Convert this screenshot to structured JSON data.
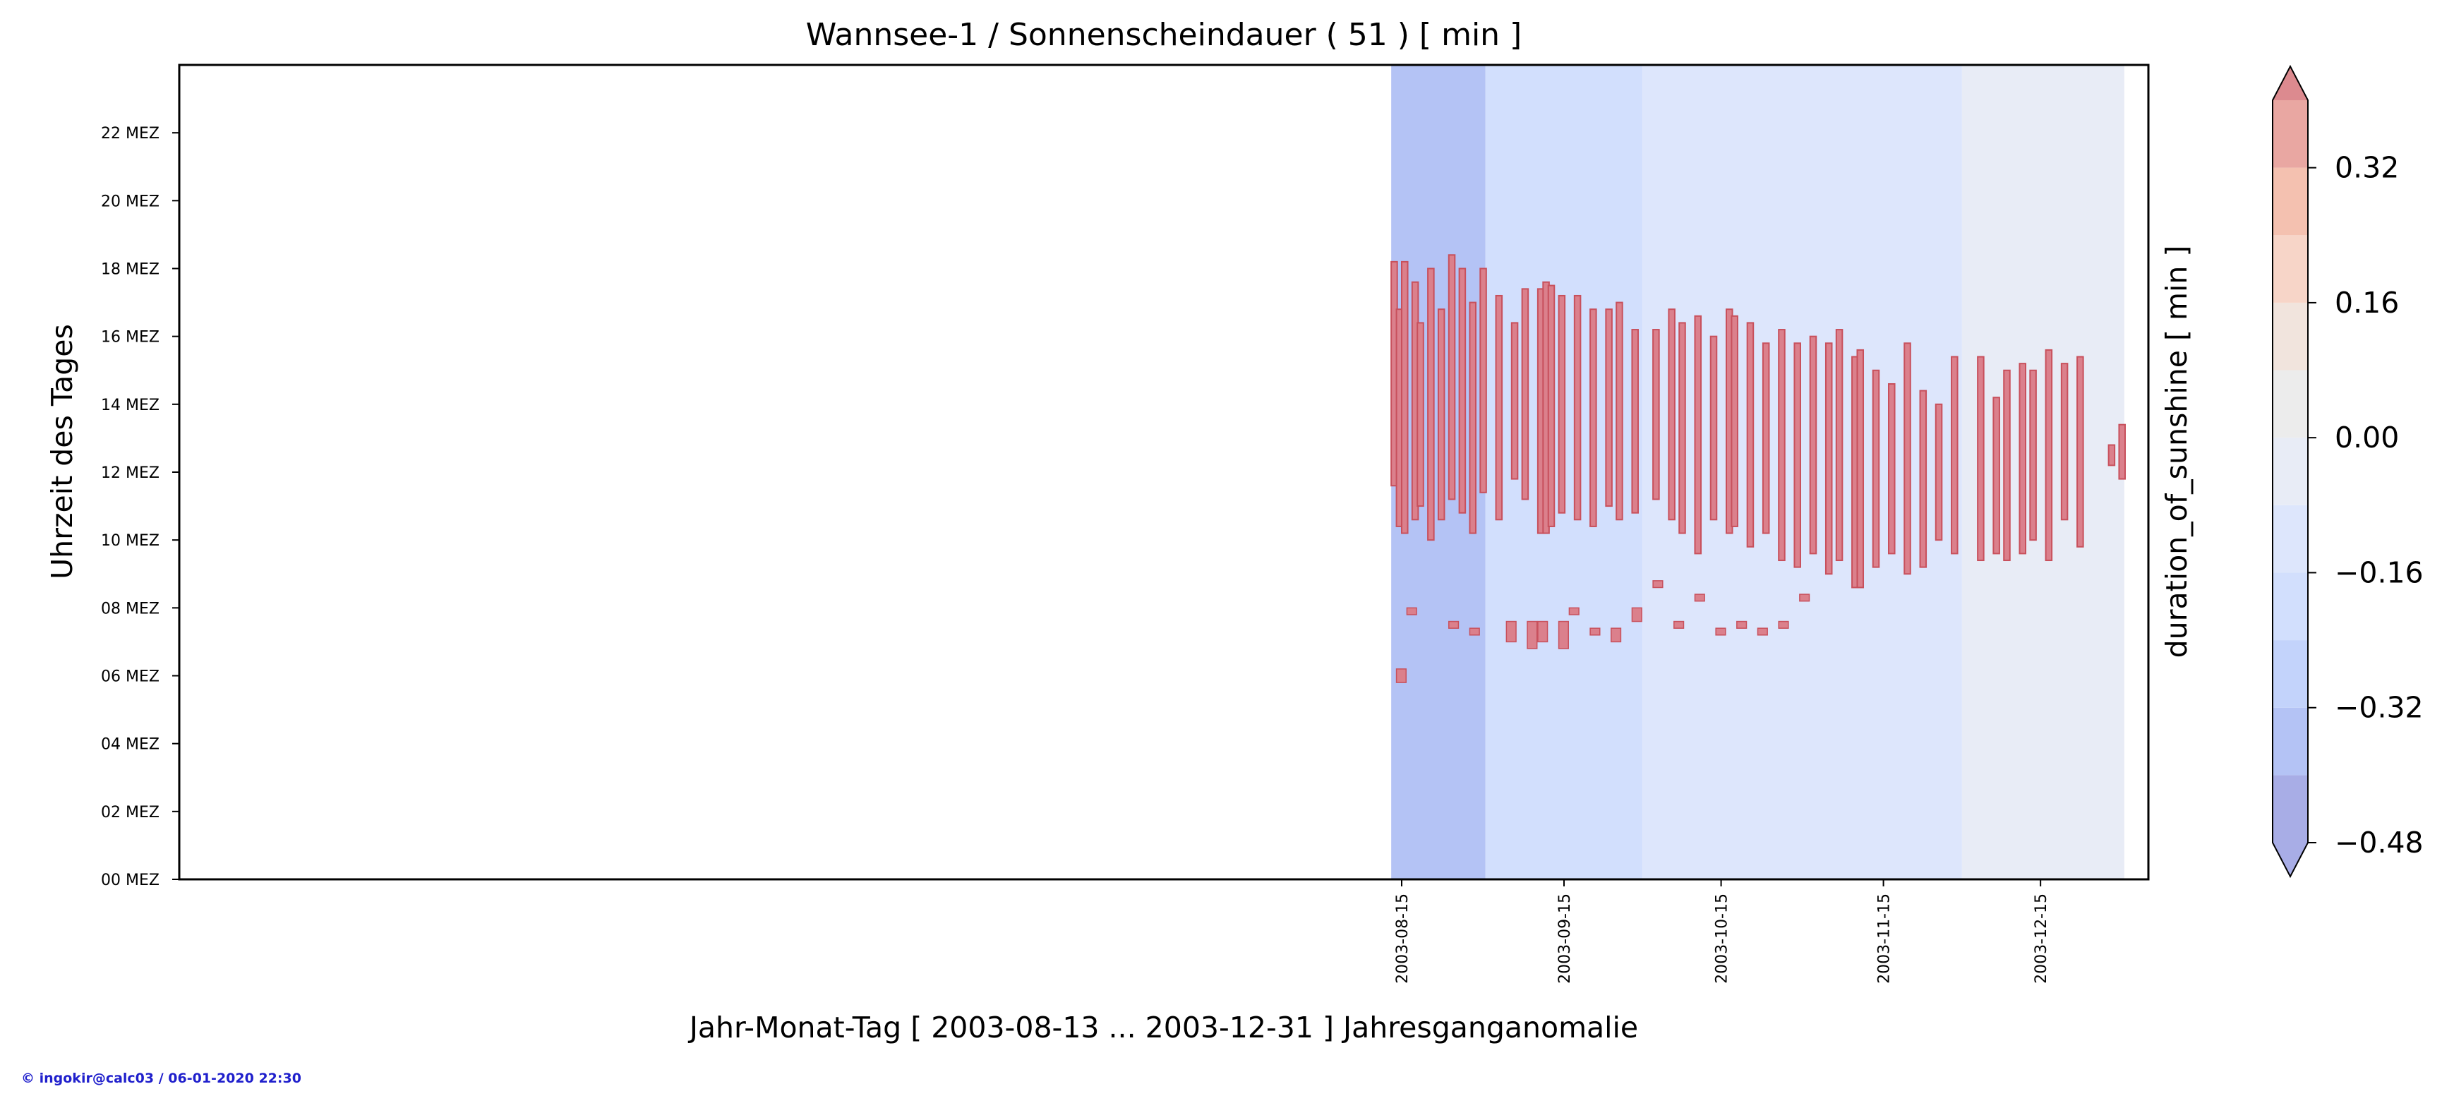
{
  "chart_data": {
    "type": "heatmap",
    "title": "Wannsee-1 / Sonnenscheindauer ( 51 ) [ min ]",
    "xlabel": "Jahr-Monat-Tag [ 2003-08-13 ... 2003-12-31 ] Jahresganganomalie",
    "ylabel": "Uhrzeit des Tages",
    "x_range": [
      "2003-08-13",
      "2003-12-31"
    ],
    "x_ticks": [
      "2003-08-15",
      "2003-09-15",
      "2003-10-15",
      "2003-11-15",
      "2003-12-15"
    ],
    "y_range": [
      0,
      24
    ],
    "y_ticks": [
      "00 MEZ",
      "02 MEZ",
      "04 MEZ",
      "06 MEZ",
      "08 MEZ",
      "10 MEZ",
      "12 MEZ",
      "14 MEZ",
      "16 MEZ",
      "18 MEZ",
      "20 MEZ",
      "22 MEZ"
    ],
    "colorbar": {
      "label": "duration_of_sunshine [ min ]",
      "range": [
        -0.48,
        0.4
      ],
      "levels": [
        -0.48,
        -0.4,
        -0.32,
        -0.24,
        -0.16,
        -0.08,
        0.0,
        0.08,
        0.16,
        0.24,
        0.32,
        0.4
      ],
      "tick_labels": [
        "0.32",
        "0.16",
        "0.00",
        "−0.16",
        "−0.32",
        "−0.48"
      ],
      "tick_values": [
        0.32,
        0.16,
        0.0,
        -0.16,
        -0.32,
        -0.48
      ],
      "extend": "both",
      "colors": [
        "#a8ade6",
        "#b4c3f5",
        "#c3d3fb",
        "#d2dffd",
        "#dde6fc",
        "#e8ecf6",
        "#ececec",
        "#f1e4dd",
        "#f7d5c8",
        "#f4c1b0",
        "#e9a7a2",
        "#dc8a8f"
      ],
      "under_color": "#c7d4f7",
      "over_color": "#db808c"
    },
    "background_bands": [
      {
        "start": "2003-08-13",
        "end": "2003-08-31",
        "value": -0.33
      },
      {
        "start": "2003-08-31",
        "end": "2003-09-30",
        "value": -0.22
      },
      {
        "start": "2003-09-30",
        "end": "2003-11-30",
        "value": -0.12
      },
      {
        "start": "2003-11-30",
        "end": "2003-12-31",
        "value": -0.04
      }
    ],
    "positive_segments": [
      [
        "2003-08-13",
        11.6,
        18.2
      ],
      [
        "2003-08-14",
        10.4,
        16.8
      ],
      [
        "2003-08-15",
        10.2,
        18.2
      ],
      [
        "2003-08-17",
        10.6,
        17.6
      ],
      [
        "2003-08-18",
        11.0,
        16.4
      ],
      [
        "2003-08-20",
        10.0,
        18.0
      ],
      [
        "2003-08-22",
        10.6,
        16.8
      ],
      [
        "2003-08-24",
        11.2,
        18.4
      ],
      [
        "2003-08-26",
        10.8,
        18.0
      ],
      [
        "2003-08-28",
        10.2,
        17.0
      ],
      [
        "2003-08-30",
        11.4,
        18.0
      ],
      [
        "2003-09-02",
        10.6,
        17.2
      ],
      [
        "2003-09-05",
        11.8,
        16.4
      ],
      [
        "2003-09-07",
        11.2,
        17.4
      ],
      [
        "2003-09-10",
        10.2,
        17.4
      ],
      [
        "2003-09-11",
        10.2,
        17.6
      ],
      [
        "2003-09-12",
        10.4,
        17.5
      ],
      [
        "2003-09-14",
        10.8,
        17.2
      ],
      [
        "2003-09-17",
        10.6,
        17.2
      ],
      [
        "2003-09-20",
        10.4,
        16.8
      ],
      [
        "2003-09-23",
        11.0,
        16.8
      ],
      [
        "2003-09-25",
        10.6,
        17.0
      ],
      [
        "2003-09-28",
        10.8,
        16.2
      ],
      [
        "2003-10-02",
        11.2,
        16.2
      ],
      [
        "2003-10-05",
        10.6,
        16.8
      ],
      [
        "2003-10-07",
        10.2,
        16.4
      ],
      [
        "2003-10-10",
        9.6,
        16.6
      ],
      [
        "2003-10-13",
        10.6,
        16.0
      ],
      [
        "2003-10-16",
        10.2,
        16.8
      ],
      [
        "2003-10-17",
        10.4,
        16.6
      ],
      [
        "2003-10-20",
        9.8,
        16.4
      ],
      [
        "2003-10-23",
        10.2,
        15.8
      ],
      [
        "2003-10-26",
        9.4,
        16.2
      ],
      [
        "2003-10-29",
        9.2,
        15.8
      ],
      [
        "2003-11-01",
        9.6,
        16.0
      ],
      [
        "2003-11-04",
        9.0,
        15.8
      ],
      [
        "2003-11-06",
        9.4,
        16.2
      ],
      [
        "2003-11-09",
        8.6,
        15.4
      ],
      [
        "2003-11-10",
        8.6,
        15.6
      ],
      [
        "2003-11-13",
        9.2,
        15.0
      ],
      [
        "2003-11-16",
        9.6,
        14.6
      ],
      [
        "2003-11-19",
        9.0,
        15.8
      ],
      [
        "2003-11-22",
        9.2,
        14.4
      ],
      [
        "2003-11-25",
        10.0,
        14.0
      ],
      [
        "2003-11-28",
        9.6,
        15.4
      ],
      [
        "2003-12-03",
        9.4,
        15.4
      ],
      [
        "2003-12-06",
        9.6,
        14.2
      ],
      [
        "2003-12-08",
        9.4,
        15.0
      ],
      [
        "2003-12-11",
        9.6,
        15.2
      ],
      [
        "2003-12-13",
        10.0,
        15.0
      ],
      [
        "2003-12-16",
        9.4,
        15.6
      ],
      [
        "2003-12-19",
        10.6,
        15.2
      ],
      [
        "2003-12-22",
        9.8,
        15.4
      ],
      [
        "2003-12-28",
        12.2,
        12.8
      ],
      [
        "2003-12-30",
        11.8,
        13.4
      ]
    ],
    "morning_flecks": [
      [
        "2003-08-14",
        5.8,
        6.2
      ],
      [
        "2003-08-16",
        7.8,
        8.0
      ],
      [
        "2003-08-24",
        7.4,
        7.6
      ],
      [
        "2003-08-28",
        7.2,
        7.4
      ],
      [
        "2003-09-04",
        7.0,
        7.6
      ],
      [
        "2003-09-08",
        6.8,
        7.6
      ],
      [
        "2003-09-10",
        7.0,
        7.6
      ],
      [
        "2003-09-14",
        6.8,
        7.6
      ],
      [
        "2003-09-16",
        7.8,
        8.0
      ],
      [
        "2003-09-20",
        7.2,
        7.4
      ],
      [
        "2003-09-24",
        7.0,
        7.4
      ],
      [
        "2003-09-28",
        7.6,
        8.0
      ],
      [
        "2003-10-02",
        8.6,
        8.8
      ],
      [
        "2003-10-06",
        7.4,
        7.6
      ],
      [
        "2003-10-10",
        8.2,
        8.4
      ],
      [
        "2003-10-14",
        7.2,
        7.4
      ],
      [
        "2003-10-18",
        7.4,
        7.6
      ],
      [
        "2003-10-22",
        7.2,
        7.4
      ],
      [
        "2003-10-26",
        7.4,
        7.6
      ],
      [
        "2003-10-30",
        8.2,
        8.4
      ]
    ]
  },
  "footer": "© ingokir@calc03 / 06-01-2020 22:30"
}
